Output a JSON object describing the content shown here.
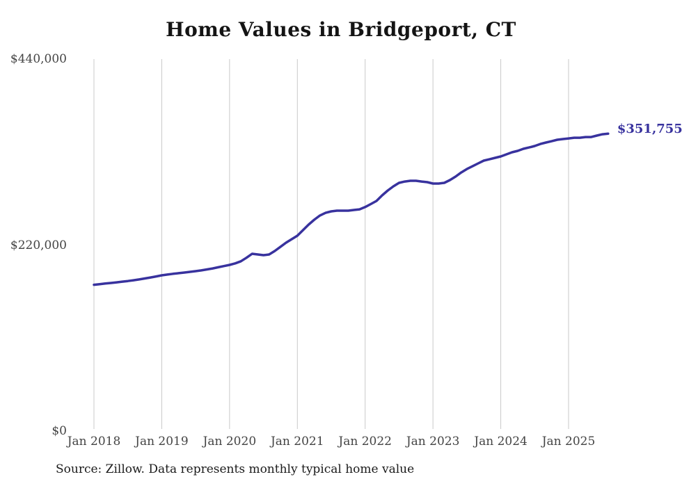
{
  "page": {
    "title": "Home Values in Bridgeport, CT",
    "source_note": "Source: Zillow. Data represents monthly typical home value",
    "end_label": "$351,755"
  },
  "chart_data": {
    "type": "line",
    "title": "Home Values in Bridgeport, CT",
    "series_name": "Monthly typical home value",
    "x_start": "2018-01",
    "x_end": "2025-08",
    "x_frequency": "monthly",
    "xticks": [
      "Jan 2018",
      "Jan 2019",
      "Jan 2020",
      "Jan 2021",
      "Jan 2022",
      "Jan 2023",
      "Jan 2024",
      "Jan 2025"
    ],
    "yticks": [
      {
        "label": "$440,000",
        "value": 440000
      },
      {
        "label": "$220,000",
        "value": 220000
      },
      {
        "label": "$0",
        "value": 0
      }
    ],
    "ylim": [
      0,
      440000
    ],
    "grid": "vertical-only",
    "legend": "none",
    "last_value": 351755,
    "last_value_label": "$351,755",
    "values": [
      173000,
      173800,
      174500,
      175200,
      175900,
      176700,
      177500,
      178400,
      179400,
      180500,
      181700,
      182900,
      184200,
      185100,
      186000,
      186800,
      187500,
      188300,
      189200,
      190100,
      191200,
      192400,
      193800,
      195200,
      196600,
      198400,
      200800,
      205000,
      209700,
      208900,
      208100,
      208900,
      213000,
      217900,
      222900,
      227000,
      231100,
      237700,
      244300,
      250000,
      255000,
      258200,
      259900,
      260700,
      260700,
      260700,
      261500,
      262300,
      265000,
      268500,
      272200,
      278800,
      284600,
      289500,
      293600,
      295200,
      296100,
      296100,
      295200,
      294400,
      292800,
      292800,
      293600,
      296900,
      301000,
      305900,
      310000,
      313300,
      316600,
      319900,
      321500,
      323200,
      324900,
      327300,
      329800,
      331400,
      333900,
      335500,
      337200,
      339600,
      341300,
      342900,
      344600,
      345400,
      346200,
      347000,
      347000,
      347800,
      347800,
      349500,
      351100,
      351755
    ],
    "colors": {
      "line": "#38329e",
      "grid": "#c9c9c9",
      "tick_text": "#444444",
      "title_text": "#141414",
      "source_text": "#1a1a1a",
      "background": "#ffffff"
    }
  }
}
